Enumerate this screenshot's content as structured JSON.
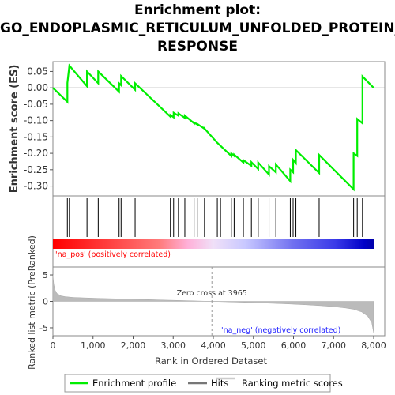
{
  "chart_data": {
    "type": "line",
    "title_lines": [
      "Enrichment plot:",
      "GO_ENDOPLASMIC_RETICULUM_UNFOLDED_PROTEIN_",
      "RESPONSE"
    ],
    "es_panel": {
      "ylabel": "Enrichment score (ES)",
      "ylim": [
        -0.33,
        0.08
      ],
      "yticks": [
        "0.05",
        "0.00",
        "-0.05",
        "-0.10",
        "-0.15",
        "-0.20",
        "-0.25",
        "-0.30"
      ],
      "ytick_values": [
        0.05,
        0.0,
        -0.05,
        -0.1,
        -0.15,
        -0.2,
        -0.25,
        -0.3
      ],
      "series_name": "Enrichment profile",
      "x": [
        0,
        360,
        360,
        410,
        850,
        850,
        1130,
        1130,
        1650,
        1650,
        1700,
        1700,
        2050,
        2050,
        2930,
        2930,
        3010,
        3010,
        3130,
        3130,
        3290,
        3290,
        3520,
        3520,
        3600,
        3600,
        3780,
        3780,
        4100,
        4100,
        4450,
        4450,
        4520,
        4520,
        4750,
        4750,
        4950,
        4950,
        5120,
        5120,
        5390,
        5390,
        5560,
        5560,
        5920,
        5920,
        5990,
        5990,
        6060,
        6060,
        6640,
        6640,
        7500,
        7500,
        7590,
        7590,
        7720,
        7720,
        8000
      ],
      "y": [
        0.0,
        -0.043,
        0.015,
        0.068,
        0.005,
        0.05,
        0.014,
        0.05,
        -0.012,
        0.014,
        0.008,
        0.036,
        -0.006,
        0.014,
        -0.088,
        -0.083,
        -0.09,
        -0.076,
        -0.085,
        -0.078,
        -0.092,
        -0.085,
        -0.108,
        -0.106,
        -0.112,
        -0.11,
        -0.125,
        -0.124,
        -0.168,
        -0.168,
        -0.208,
        -0.2,
        -0.208,
        -0.204,
        -0.228,
        -0.221,
        -0.238,
        -0.227,
        -0.248,
        -0.228,
        -0.265,
        -0.239,
        -0.258,
        -0.234,
        -0.285,
        -0.25,
        -0.258,
        -0.22,
        -0.23,
        -0.19,
        -0.26,
        -0.205,
        -0.31,
        -0.2,
        -0.208,
        -0.095,
        -0.108,
        0.035,
        0.0
      ]
    },
    "hits_panel": {
      "legend_name": "Hits",
      "positions": [
        360,
        410,
        850,
        1130,
        1650,
        1700,
        2050,
        2930,
        3010,
        3130,
        3290,
        3520,
        3600,
        3780,
        4100,
        4180,
        4450,
        4520,
        4750,
        4950,
        5120,
        5390,
        5560,
        5920,
        5990,
        6060,
        6640,
        7500,
        7590,
        7720
      ]
    },
    "rank_panel": {
      "ylabel": "Ranked list metric (PreRanked)",
      "xlabel": "Rank in Ordered Dataset",
      "ylim": [
        -6.5,
        6.5
      ],
      "yticks": [
        "5",
        "0",
        "-5"
      ],
      "ytick_values": [
        5,
        0,
        -5
      ],
      "xlim": [
        0,
        8000
      ],
      "xticks": [
        "0",
        "1,000",
        "2,000",
        "3,000",
        "4,000",
        "5,000",
        "6,000",
        "7,000",
        "8,000"
      ],
      "xtick_values": [
        0,
        1000,
        2000,
        3000,
        4000,
        5000,
        6000,
        7000,
        8000
      ],
      "series_name": "Ranking metric scores",
      "x": [
        0,
        20,
        50,
        100,
        200,
        300,
        500,
        800,
        1200,
        1600,
        2000,
        2400,
        2800,
        3200,
        3600,
        3965,
        4300,
        4700,
        5100,
        5500,
        5900,
        6300,
        6700,
        7000,
        7300,
        7500,
        7700,
        7850,
        7950,
        8000
      ],
      "y": [
        5.0,
        3.3,
        2.2,
        1.5,
        1.05,
        0.9,
        0.75,
        0.65,
        0.55,
        0.48,
        0.4,
        0.33,
        0.24,
        0.16,
        0.07,
        0.0,
        -0.08,
        -0.17,
        -0.27,
        -0.38,
        -0.5,
        -0.64,
        -0.82,
        -1.0,
        -1.25,
        -1.5,
        -2.0,
        -2.8,
        -4.0,
        -6.0
      ],
      "zero_cross_label": "Zero cross at 3965",
      "zero_cross": 3965,
      "pos_label": "'na_pos' (positively correlated)",
      "neg_label": "'na_neg' (negatively correlated)"
    },
    "legend_placement": "bottom",
    "colors": {
      "enrichment": "#00ee00",
      "hits": "#000000",
      "ranking": "#bbbbbb",
      "pos_label": "#ff0000",
      "neg_label": "#0000ff",
      "zero_line": "#888888"
    }
  }
}
